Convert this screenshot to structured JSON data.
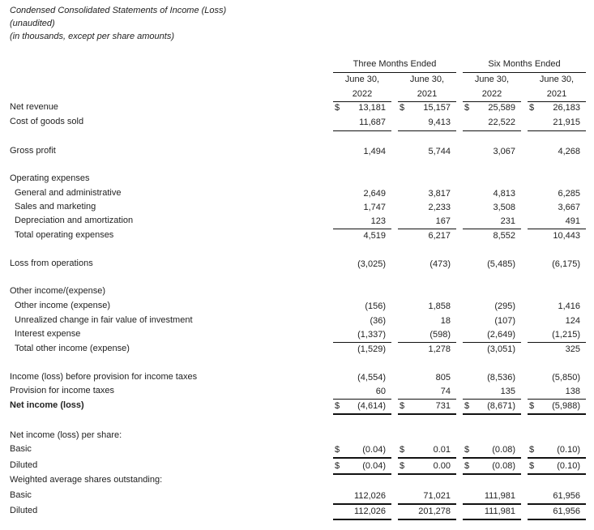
{
  "titles": [
    "Condensed Consolidated Statements of Income (Loss)",
    "(unaudited)",
    "(in thousands, except per share amounts)"
  ],
  "header": {
    "groups": [
      "Three Months Ended",
      "Six Months Ended"
    ],
    "columns": [
      {
        "line1": "June 30,",
        "line2": "2022"
      },
      {
        "line1": "June 30,",
        "line2": "2021"
      },
      {
        "line1": "June 30,",
        "line2": "2022"
      },
      {
        "line1": "June 30,",
        "line2": "2021"
      }
    ]
  },
  "rows": [
    {
      "label": "Net revenue",
      "values": [
        "13,181",
        "15,157",
        "25,589",
        "26,183"
      ],
      "dollar": true
    },
    {
      "label": "Cost of goods sold",
      "values": [
        "11,687",
        "9,413",
        "22,522",
        "21,915"
      ]
    },
    {
      "label": "Gross profit",
      "values": [
        "1,494",
        "5,744",
        "3,067",
        "4,268"
      ]
    },
    {
      "label": "Operating expenses",
      "values": []
    },
    {
      "label": "General and administrative",
      "indent": true,
      "values": [
        "2,649",
        "3,817",
        "4,813",
        "6,285"
      ]
    },
    {
      "label": "Sales and marketing",
      "indent": true,
      "values": [
        "1,747",
        "2,233",
        "3,508",
        "3,667"
      ]
    },
    {
      "label": "Depreciation and amortization",
      "indent": true,
      "values": [
        "123",
        "167",
        "231",
        "491"
      ]
    },
    {
      "label": "Total operating expenses",
      "indent": true,
      "values": [
        "4,519",
        "6,217",
        "8,552",
        "10,443"
      ]
    },
    {
      "label": "Loss from operations",
      "values": [
        "(3,025)",
        "(473)",
        "(5,485)",
        "(6,175)"
      ]
    },
    {
      "label": "Other income/(expense)",
      "values": []
    },
    {
      "label": "Other income (expense)",
      "indent": true,
      "values": [
        "(156)",
        "1,858",
        "(295)",
        "1,416"
      ]
    },
    {
      "label": "Unrealized change in fair value of investment",
      "indent": true,
      "values": [
        "(36)",
        "18",
        "(107)",
        "124"
      ]
    },
    {
      "label": "Interest expense",
      "indent": true,
      "values": [
        "(1,337)",
        "(598)",
        "(2,649)",
        "(1,215)"
      ]
    },
    {
      "label": "Total other income (expense)",
      "indent": true,
      "values": [
        "(1,529)",
        "1,278",
        "(3,051)",
        "325"
      ]
    },
    {
      "label": "Income (loss) before provision for income taxes",
      "values": [
        "(4,554)",
        "805",
        "(8,536)",
        "(5,850)"
      ]
    },
    {
      "label": "Provision for income taxes",
      "values": [
        "60",
        "74",
        "135",
        "138"
      ]
    },
    {
      "label": "Net income (loss)",
      "values": [
        "(4,614)",
        "731",
        "(8,671)",
        "(5,988)"
      ],
      "dollar": true
    },
    {
      "label": "Net income (loss) per share:",
      "values": []
    },
    {
      "label": "Basic",
      "values": [
        "(0.04)",
        "0.01",
        "(0.08)",
        "(0.10)"
      ],
      "dollar": true
    },
    {
      "label": "Diluted",
      "values": [
        "(0.04)",
        "0.00",
        "(0.08)",
        "(0.10)"
      ],
      "dollar": true
    },
    {
      "label": "Weighted average shares outstanding:",
      "values": []
    },
    {
      "label": "Basic",
      "values": [
        "112,026",
        "71,021",
        "111,981",
        "61,956"
      ]
    },
    {
      "label": "Diluted",
      "values": [
        "112,026",
        "201,278",
        "111,981",
        "61,956"
      ]
    }
  ],
  "currency_symbol": "$"
}
